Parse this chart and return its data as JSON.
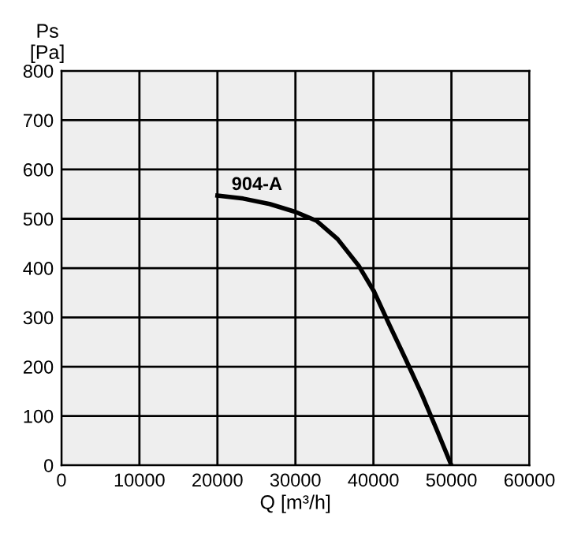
{
  "chart_data": {
    "type": "line",
    "xlabel": "Q [m³/h]",
    "ylabel": "Ps\n[Pa]",
    "xlim": [
      0,
      60000
    ],
    "ylim": [
      0,
      800
    ],
    "xticks": [
      0,
      10000,
      20000,
      30000,
      40000,
      50000,
      60000
    ],
    "yticks": [
      0,
      100,
      200,
      300,
      400,
      500,
      600,
      700,
      800
    ],
    "grid": true,
    "marker": "none",
    "line_style": "solid",
    "series": [
      {
        "name": "904-A",
        "color": "#000000",
        "x": [
          20000,
          23300,
          26700,
          30000,
          32700,
          35400,
          38100,
          40100,
          42100,
          44200,
          46200,
          48200,
          50000
        ],
        "values": [
          547,
          541,
          530,
          514,
          496,
          459,
          405,
          352,
          283,
          213,
          144,
          69,
          0
        ]
      }
    ]
  }
}
